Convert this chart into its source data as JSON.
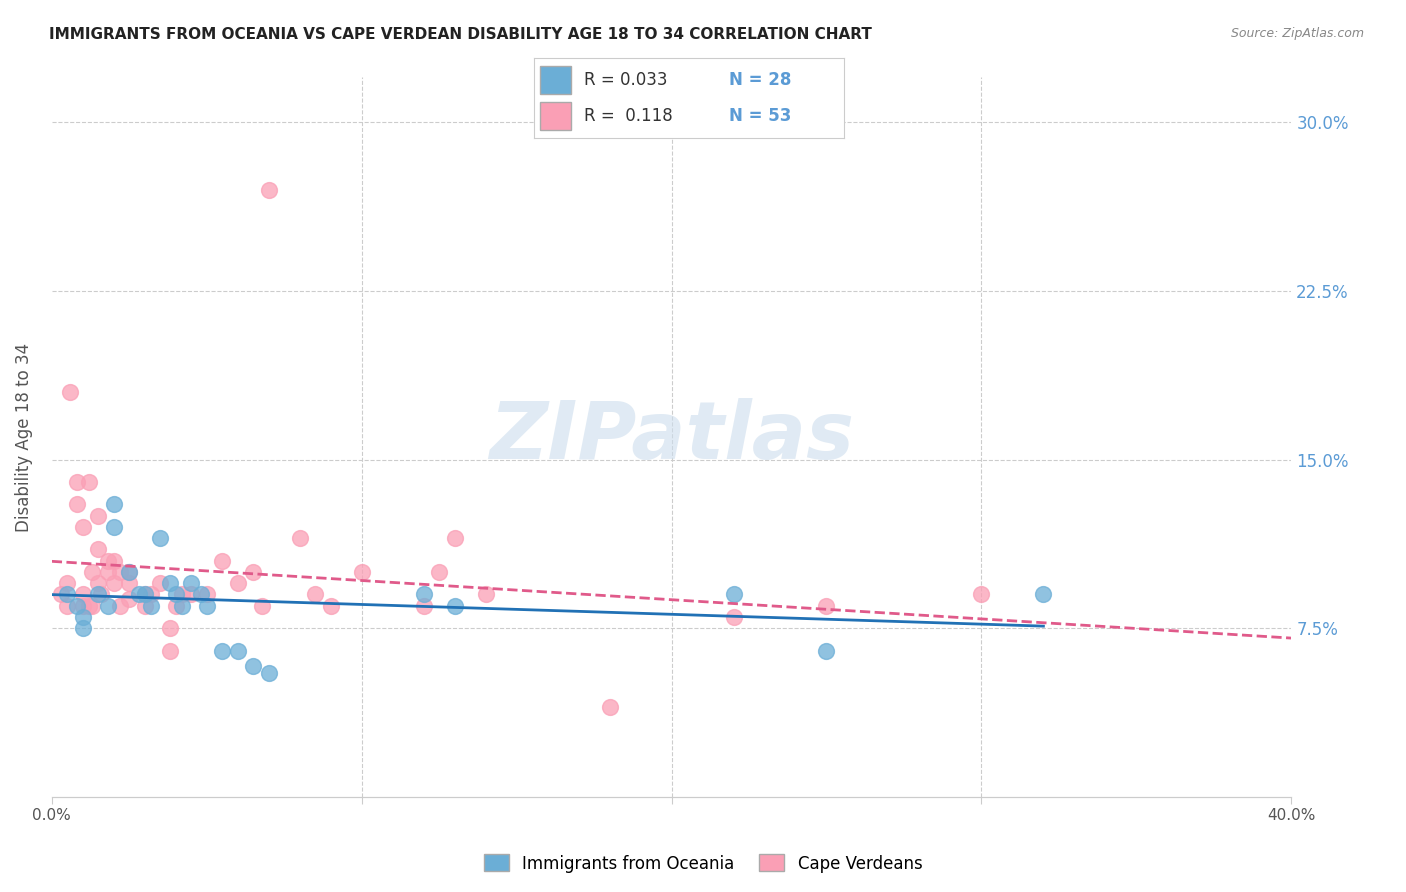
{
  "title": "IMMIGRANTS FROM OCEANIA VS CAPE VERDEAN DISABILITY AGE 18 TO 34 CORRELATION CHART",
  "source": "Source: ZipAtlas.com",
  "ylabel": "Disability Age 18 to 34",
  "ytick_labels": [
    "7.5%",
    "15.0%",
    "22.5%",
    "30.0%"
  ],
  "ytick_values": [
    0.075,
    0.15,
    0.225,
    0.3
  ],
  "xlim": [
    0.0,
    0.4
  ],
  "ylim": [
    0.0,
    0.32
  ],
  "legend_blue_label": "Immigrants from Oceania",
  "legend_pink_label": "Cape Verdeans",
  "blue_color": "#6baed6",
  "pink_color": "#fa9fb5",
  "blue_line_color": "#2171b5",
  "pink_line_color": "#e05a8a",
  "watermark_text": "ZIPatlas",
  "blue_x": [
    0.005,
    0.008,
    0.01,
    0.01,
    0.015,
    0.018,
    0.02,
    0.02,
    0.025,
    0.028,
    0.03,
    0.032,
    0.035,
    0.038,
    0.04,
    0.042,
    0.045,
    0.048,
    0.05,
    0.055,
    0.06,
    0.065,
    0.07,
    0.12,
    0.13,
    0.22,
    0.25,
    0.32
  ],
  "blue_y": [
    0.09,
    0.085,
    0.08,
    0.075,
    0.09,
    0.085,
    0.13,
    0.12,
    0.1,
    0.09,
    0.09,
    0.085,
    0.115,
    0.095,
    0.09,
    0.085,
    0.095,
    0.09,
    0.085,
    0.065,
    0.065,
    0.058,
    0.055,
    0.09,
    0.085,
    0.09,
    0.065,
    0.09
  ],
  "pink_x": [
    0.003,
    0.005,
    0.005,
    0.006,
    0.008,
    0.008,
    0.01,
    0.01,
    0.01,
    0.012,
    0.012,
    0.013,
    0.013,
    0.015,
    0.015,
    0.015,
    0.016,
    0.018,
    0.018,
    0.02,
    0.02,
    0.022,
    0.022,
    0.025,
    0.025,
    0.025,
    0.03,
    0.03,
    0.032,
    0.035,
    0.038,
    0.038,
    0.04,
    0.042,
    0.045,
    0.05,
    0.055,
    0.06,
    0.065,
    0.068,
    0.07,
    0.08,
    0.085,
    0.09,
    0.1,
    0.12,
    0.125,
    0.13,
    0.14,
    0.18,
    0.22,
    0.25,
    0.3
  ],
  "pink_y": [
    0.09,
    0.095,
    0.085,
    0.18,
    0.14,
    0.13,
    0.085,
    0.09,
    0.12,
    0.14,
    0.085,
    0.085,
    0.1,
    0.125,
    0.095,
    0.11,
    0.09,
    0.105,
    0.1,
    0.105,
    0.095,
    0.085,
    0.1,
    0.095,
    0.1,
    0.088,
    0.09,
    0.085,
    0.09,
    0.095,
    0.075,
    0.065,
    0.085,
    0.09,
    0.09,
    0.09,
    0.105,
    0.095,
    0.1,
    0.085,
    0.27,
    0.115,
    0.09,
    0.085,
    0.1,
    0.085,
    0.1,
    0.115,
    0.09,
    0.04,
    0.08,
    0.085,
    0.09
  ]
}
